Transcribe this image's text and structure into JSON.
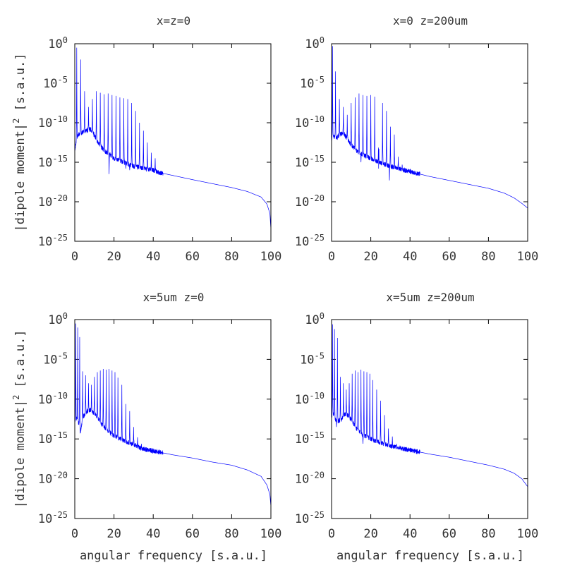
{
  "figure": {
    "ylabel": "|dipole moment|",
    "ylabel_sup": "2",
    "ylabel_unit": " [s.a.u.]",
    "xlabel": "angular frequency [s.a.u.]"
  },
  "chart_data": [
    {
      "type": "line",
      "title": "x=z=0",
      "xlabel": "",
      "ylabel": "|dipole moment|^2 [s.a.u.]",
      "xlim": [
        0,
        100
      ],
      "ylim_exponents": [
        -25,
        0
      ],
      "log_y": true,
      "grid": false,
      "x_ticks": [
        "0",
        "20",
        "40",
        "60",
        "80",
        "100"
      ],
      "y_ticks": [
        {
          "base": "10",
          "exp": "0"
        },
        {
          "base": "10",
          "exp": "-5"
        },
        {
          "base": "10",
          "exp": "-10"
        },
        {
          "base": "10",
          "exp": "-15"
        },
        {
          "base": "10",
          "exp": "-20"
        },
        {
          "base": "10",
          "exp": "-25"
        }
      ],
      "series": [
        {
          "color": "#0000ff",
          "floor_log10": [
            [
              0,
              -13.5
            ],
            [
              1,
              -12
            ],
            [
              2,
              -11.5
            ],
            [
              4,
              -11.2
            ],
            [
              6,
              -11
            ],
            [
              8,
              -10.8
            ],
            [
              10,
              -11.6
            ],
            [
              12,
              -12.6
            ],
            [
              15,
              -13.5
            ],
            [
              20,
              -14.5
            ],
            [
              30,
              -15.5
            ],
            [
              40,
              -16
            ],
            [
              43,
              -16.3
            ],
            [
              60,
              -17.2
            ],
            [
              70,
              -17.7
            ],
            [
              80,
              -18.2
            ],
            [
              88,
              -18.7
            ],
            [
              95,
              -19.4
            ],
            [
              98,
              -20.3
            ],
            [
              99.5,
              -21.5
            ],
            [
              100,
              -23.5
            ]
          ],
          "peaks": [
            [
              1,
              -0.5
            ],
            [
              3,
              -2
            ],
            [
              5,
              -6
            ],
            [
              7,
              -8
            ],
            [
              9,
              -7
            ],
            [
              11,
              -6
            ],
            [
              13,
              -6.2
            ],
            [
              15,
              -6.4
            ],
            [
              17,
              -6.3
            ],
            [
              19,
              -6.5
            ],
            [
              21,
              -6.6
            ],
            [
              23,
              -6.8
            ],
            [
              25,
              -6.9
            ],
            [
              27,
              -7
            ],
            [
              29,
              -7.5
            ],
            [
              31,
              -8.5
            ],
            [
              33,
              -10
            ],
            [
              35,
              -11
            ],
            [
              37,
              -12.5
            ],
            [
              39,
              -13.8
            ],
            [
              41,
              -14.5
            ]
          ],
          "dips": [
            [
              17.5,
              -16.5
            ],
            [
              28,
              -16
            ],
            [
              26,
              -15.8
            ]
          ]
        }
      ]
    },
    {
      "type": "line",
      "title": "x=0 z=200um",
      "xlabel": "",
      "ylabel": "",
      "xlim": [
        0,
        100
      ],
      "ylim_exponents": [
        -25,
        0
      ],
      "log_y": true,
      "grid": false,
      "x_ticks": [
        "0",
        "20",
        "40",
        "60",
        "80",
        "100"
      ],
      "y_ticks": [
        {
          "base": "10",
          "exp": "0"
        },
        {
          "base": "10",
          "exp": "-5"
        },
        {
          "base": "10",
          "exp": "-10"
        },
        {
          "base": "10",
          "exp": "-15"
        },
        {
          "base": "10",
          "exp": "-20"
        },
        {
          "base": "10",
          "exp": "-25"
        }
      ],
      "series": [
        {
          "color": "#0000ff",
          "floor_log10": [
            [
              0,
              -12
            ],
            [
              1,
              -11.6
            ],
            [
              2,
              -12.1
            ],
            [
              4,
              -11.5
            ],
            [
              6,
              -11.3
            ],
            [
              8,
              -12
            ],
            [
              10,
              -12.8
            ],
            [
              13,
              -13.6
            ],
            [
              18,
              -14.3
            ],
            [
              25,
              -15.1
            ],
            [
              30,
              -15.5
            ],
            [
              37,
              -16
            ],
            [
              50,
              -16.8
            ],
            [
              60,
              -17.3
            ],
            [
              70,
              -17.8
            ],
            [
              80,
              -18.3
            ],
            [
              88,
              -18.9
            ],
            [
              93,
              -19.5
            ],
            [
              97,
              -20.2
            ],
            [
              100,
              -20.8
            ]
          ],
          "peaks": [
            [
              0.5,
              -0.3
            ],
            [
              2,
              -3.5
            ],
            [
              4,
              -7
            ],
            [
              6,
              -8
            ],
            [
              8,
              -9
            ],
            [
              10,
              -7.5
            ],
            [
              12,
              -6.8
            ],
            [
              14,
              -6.3
            ],
            [
              16,
              -6.5
            ],
            [
              18,
              -6.6
            ],
            [
              20,
              -6.5
            ],
            [
              22,
              -6.7
            ],
            [
              24,
              -6.8
            ],
            [
              26,
              -7.5
            ],
            [
              28,
              -8.5
            ],
            [
              30,
              -10.5
            ],
            [
              32,
              -11.5
            ],
            [
              34,
              -14.3
            ],
            [
              36,
              -15.3
            ]
          ],
          "dips": [
            [
              29.5,
              -17.3
            ],
            [
              15,
              -15
            ],
            [
              24,
              -15.8
            ]
          ]
        }
      ]
    },
    {
      "type": "line",
      "title": "x=5um z=0",
      "xlabel": "angular frequency [s.a.u.]",
      "ylabel": "|dipole moment|^2 [s.a.u.]",
      "xlim": [
        0,
        100
      ],
      "ylim_exponents": [
        -25,
        0
      ],
      "log_y": true,
      "grid": false,
      "x_ticks": [
        "0",
        "20",
        "40",
        "60",
        "80",
        "100"
      ],
      "y_ticks": [
        {
          "base": "10",
          "exp": "0"
        },
        {
          "base": "10",
          "exp": "-5"
        },
        {
          "base": "10",
          "exp": "-10"
        },
        {
          "base": "10",
          "exp": "-15"
        },
        {
          "base": "10",
          "exp": "-20"
        },
        {
          "base": "10",
          "exp": "-25"
        }
      ],
      "series": [
        {
          "color": "#0000ff",
          "floor_log10": [
            [
              0,
              -12.8
            ],
            [
              1,
              -12.4
            ],
            [
              2,
              -13
            ],
            [
              3,
              -14
            ],
            [
              4,
              -12.3
            ],
            [
              6,
              -11.6
            ],
            [
              8,
              -11.3
            ],
            [
              10,
              -11.8
            ],
            [
              12,
              -12.4
            ],
            [
              14,
              -13.2
            ],
            [
              17,
              -14
            ],
            [
              20,
              -14.6
            ],
            [
              25,
              -15.2
            ],
            [
              30,
              -15.7
            ],
            [
              34,
              -16.2
            ],
            [
              50,
              -17
            ],
            [
              60,
              -17.4
            ],
            [
              70,
              -17.9
            ],
            [
              80,
              -18.3
            ],
            [
              88,
              -18.9
            ],
            [
              95,
              -19.7
            ],
            [
              98,
              -20.8
            ],
            [
              99.5,
              -22
            ],
            [
              100,
              -23.5
            ]
          ],
          "peaks": [
            [
              0.5,
              -0.5
            ],
            [
              1.5,
              -1
            ],
            [
              2.5,
              -2.2
            ],
            [
              4,
              -6.5
            ],
            [
              5.5,
              -7
            ],
            [
              7,
              -8
            ],
            [
              8.5,
              -8.2
            ],
            [
              10,
              -7.2
            ],
            [
              11.5,
              -6.6
            ],
            [
              13,
              -6.4
            ],
            [
              14.5,
              -6.2
            ],
            [
              16,
              -6.3
            ],
            [
              17.5,
              -6.2
            ],
            [
              19,
              -6.4
            ],
            [
              20.5,
              -6.6
            ],
            [
              22,
              -7.3
            ],
            [
              24,
              -8.2
            ],
            [
              26,
              -10.6
            ],
            [
              28,
              -11.5
            ],
            [
              30,
              -13.5
            ],
            [
              32,
              -14.8
            ],
            [
              34,
              -15.6
            ]
          ],
          "dips": [
            [
              2.8,
              -14.3
            ]
          ]
        }
      ]
    },
    {
      "type": "line",
      "title": "x=5um z=200um",
      "xlabel": "angular frequency [s.a.u.]",
      "ylabel": "",
      "xlim": [
        0,
        100
      ],
      "ylim_exponents": [
        -25,
        0
      ],
      "log_y": true,
      "grid": false,
      "x_ticks": [
        "0",
        "20",
        "40",
        "60",
        "80",
        "100"
      ],
      "y_ticks": [
        {
          "base": "10",
          "exp": "0"
        },
        {
          "base": "10",
          "exp": "-5"
        },
        {
          "base": "10",
          "exp": "-10"
        },
        {
          "base": "10",
          "exp": "-15"
        },
        {
          "base": "10",
          "exp": "-20"
        },
        {
          "base": "10",
          "exp": "-25"
        }
      ],
      "series": [
        {
          "color": "#0000ff",
          "floor_log10": [
            [
              0,
              -12.2
            ],
            [
              1,
              -11.8
            ],
            [
              2,
              -12.6
            ],
            [
              3,
              -12.8
            ],
            [
              5,
              -12.6
            ],
            [
              7,
              -11.8
            ],
            [
              9,
              -12.2
            ],
            [
              11,
              -13
            ],
            [
              13,
              -13.8
            ],
            [
              16,
              -14.5
            ],
            [
              20,
              -15
            ],
            [
              25,
              -15.5
            ],
            [
              32,
              -16
            ],
            [
              50,
              -16.9
            ],
            [
              60,
              -17.3
            ],
            [
              70,
              -17.8
            ],
            [
              80,
              -18.3
            ],
            [
              88,
              -18.8
            ],
            [
              93,
              -19.3
            ],
            [
              97,
              -20
            ],
            [
              100,
              -21
            ]
          ],
          "peaks": [
            [
              0.5,
              -0.6
            ],
            [
              1.5,
              -1.2
            ],
            [
              3,
              -2.3
            ],
            [
              4.5,
              -7.2
            ],
            [
              6,
              -8
            ],
            [
              7.5,
              -8.8
            ],
            [
              9,
              -8
            ],
            [
              10.5,
              -6.8
            ],
            [
              12,
              -6.4
            ],
            [
              13.5,
              -6.6
            ],
            [
              15,
              -6.3
            ],
            [
              16.5,
              -6.5
            ],
            [
              18,
              -6.6
            ],
            [
              19.5,
              -6.8
            ],
            [
              21,
              -7.6
            ],
            [
              23,
              -8.8
            ],
            [
              25,
              -10.2
            ],
            [
              27,
              -12
            ],
            [
              29,
              -13.7
            ],
            [
              31,
              -14.7
            ],
            [
              33,
              -15.6
            ]
          ],
          "dips": [
            [
              2.5,
              -13.5
            ],
            [
              16,
              -15.6
            ]
          ]
        }
      ]
    }
  ]
}
